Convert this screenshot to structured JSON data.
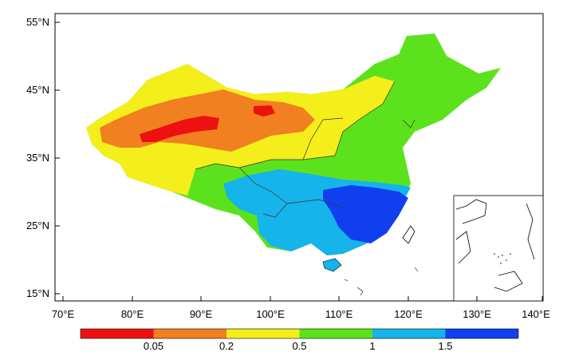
{
  "map": {
    "lat_labels": [
      "55°N",
      "45°N",
      "35°N",
      "25°N",
      "15°N"
    ],
    "lon_labels": [
      "70°E",
      "80°E",
      "90°E",
      "100°E",
      "110°E",
      "120°E",
      "130°E",
      "140°E"
    ],
    "colorbar": {
      "colors": [
        "#ee1111",
        "#f08020",
        "#f4ee1a",
        "#5ce21c",
        "#15b4ea",
        "#1040ee"
      ],
      "labels": [
        "0.05",
        "0.2",
        "0.5",
        "1",
        "1.5"
      ]
    },
    "inset": "South China Sea islands"
  }
}
